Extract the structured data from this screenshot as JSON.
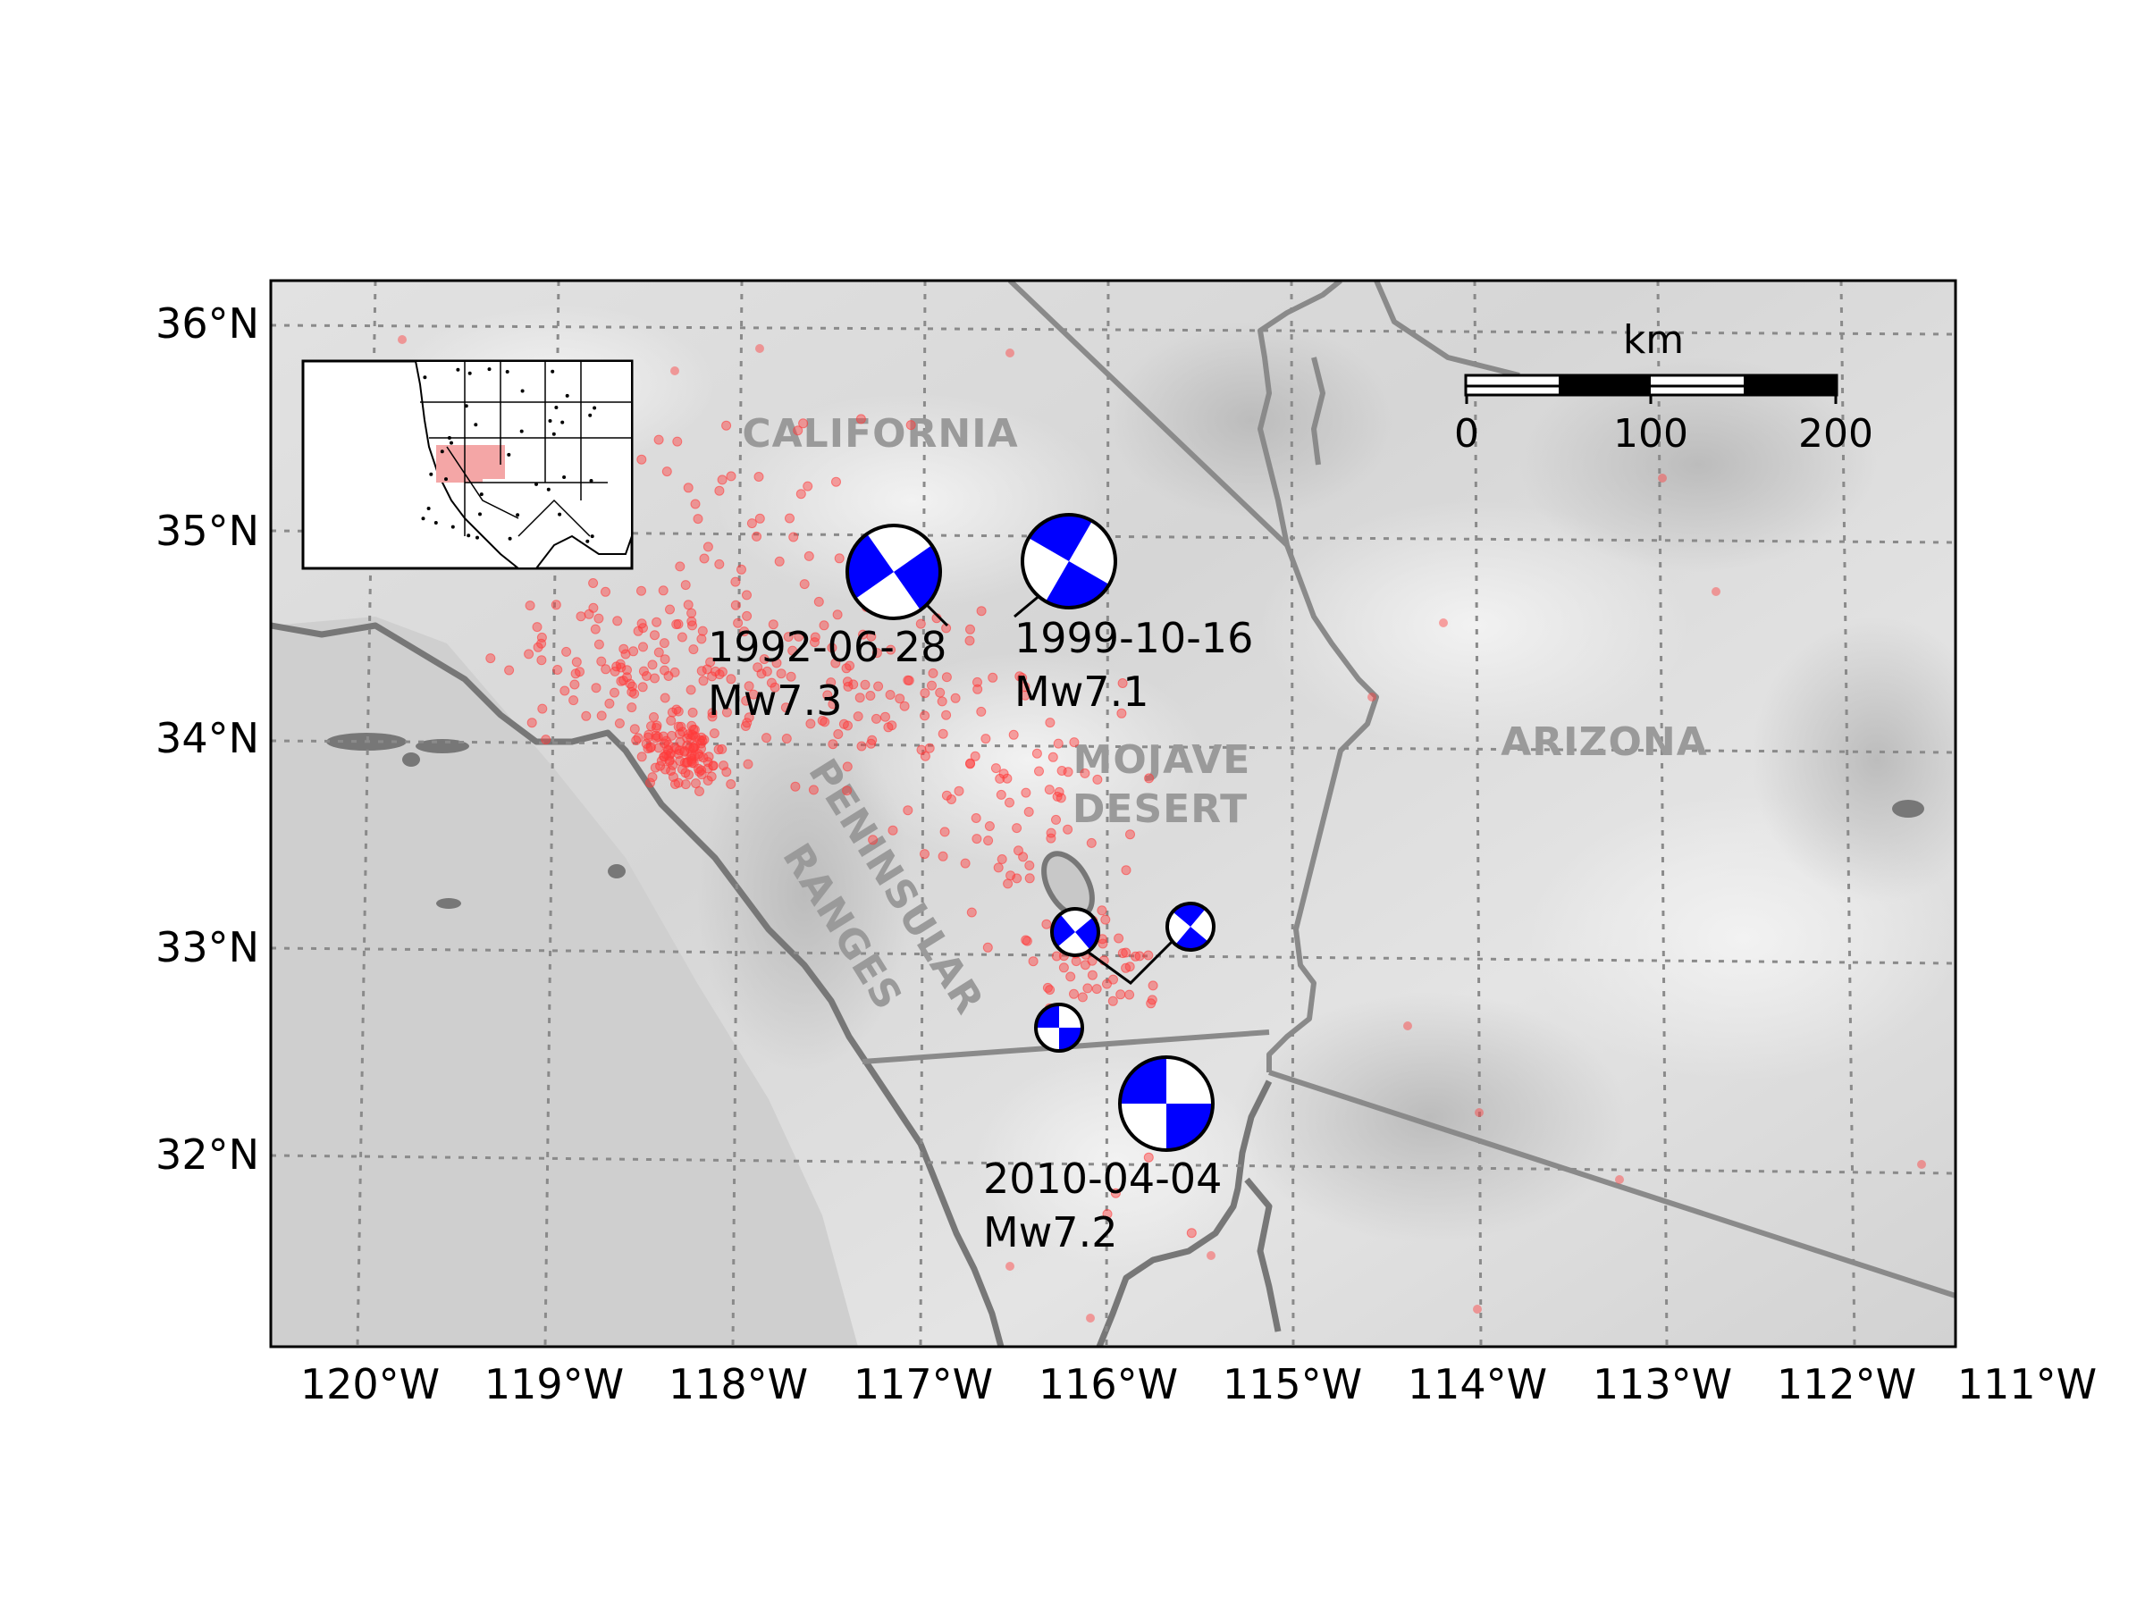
{
  "map": {
    "x_ticks": [
      "120°W",
      "119°W",
      "118°W",
      "117°W",
      "116°W",
      "115°W",
      "114°W",
      "113°W",
      "112°W",
      "111°W"
    ],
    "y_ticks": [
      "36°N",
      "35°N",
      "34°N",
      "33°N",
      "32°N"
    ],
    "lon_range": [
      -120.5,
      -111.1
    ],
    "lat_range": [
      31.05,
      36.2
    ],
    "grid": "dotted",
    "region_labels": {
      "california": "CALIFORNIA",
      "arizona": "ARIZONA",
      "mojave_line1": "MOJAVE",
      "mojave_line2": "DESERT",
      "peninsular_line1": "PENINSULAR",
      "peninsular_line2": "RANGES"
    },
    "scale_bar": {
      "unit": "km",
      "labels": [
        "0",
        "100",
        "200"
      ]
    },
    "events": [
      {
        "date": "1992-06-28",
        "magnitude": "Mw7.3",
        "lon": -116.4,
        "lat": 34.2
      },
      {
        "date": "1999-10-16",
        "magnitude": "Mw7.1",
        "lon": -116.3,
        "lat": 34.6
      },
      {
        "date": "2010-04-04",
        "magnitude": "Mw7.2",
        "lon": -115.3,
        "lat": 32.3
      }
    ],
    "colors": {
      "beachball_fill": "#0000ff",
      "seismicity_dots": "#ff3b3b",
      "borders": "#888888",
      "inset_highlight": "#f4a6a6"
    },
    "inset": {
      "description_shown": "overview map of western North America with highlighted study area"
    }
  }
}
